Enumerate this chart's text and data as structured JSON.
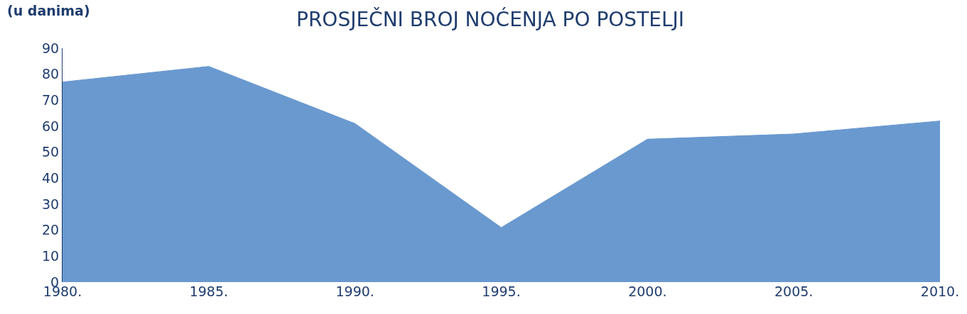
{
  "chart_data": {
    "type": "area",
    "title": "PROSJEČNI BROJ NOĆENJA PO POSTELJI",
    "ylabel": "(u danima)",
    "categories": [
      "1980.",
      "1985.",
      "1990.",
      "1995.",
      "2000.",
      "2005.",
      "2010."
    ],
    "series": [
      {
        "color": "#6999cf",
        "values": [
          77,
          83,
          61,
          21,
          55,
          57,
          62
        ]
      }
    ],
    "ylim": [
      0,
      90
    ],
    "yticks": [
      0,
      10,
      20,
      30,
      40,
      50,
      60,
      70,
      80,
      90
    ],
    "grid": false
  }
}
